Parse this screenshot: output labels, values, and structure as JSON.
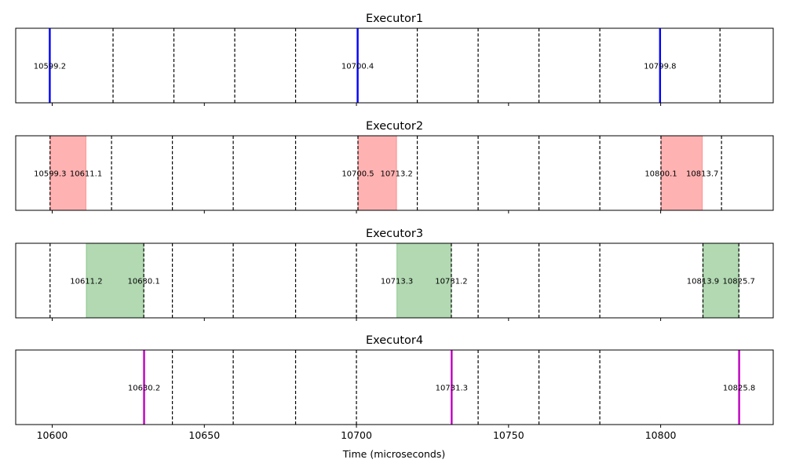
{
  "chart_data": {
    "type": "timeline",
    "xlabel": "Time (microseconds)",
    "xlim": [
      10588,
      10837
    ],
    "xticks": [
      10600,
      10650,
      10700,
      10750,
      10800
    ],
    "panels": [
      {
        "title": "Executor1",
        "dashed_lines": [
          10620,
          10640,
          10660,
          10680,
          10720,
          10740,
          10760,
          10780,
          10819.5
        ],
        "markers": [
          {
            "x": 10599.2,
            "label": "10599.2",
            "color": "#0000ff"
          },
          {
            "x": 10700.4,
            "label": "10700.4",
            "color": "#0000ff"
          },
          {
            "x": 10799.8,
            "label": "10799.8",
            "color": "#0000ff"
          }
        ],
        "spans": [],
        "labels": [
          {
            "x": 10599.2,
            "text": "10599.2"
          },
          {
            "x": 10700.4,
            "text": "10700.4"
          },
          {
            "x": 10799.8,
            "text": "10799.8"
          }
        ]
      },
      {
        "title": "Executor2",
        "dashed_lines": [
          10599.3,
          10619.5,
          10639.5,
          10659.5,
          10680,
          10700.5,
          10720,
          10740,
          10760,
          10780,
          10800.1,
          10820
        ],
        "markers": [],
        "spans": [
          {
            "start": 10599.3,
            "end": 10611.1,
            "color": "#ff0000"
          },
          {
            "start": 10700.5,
            "end": 10713.2,
            "color": "#ff0000"
          },
          {
            "start": 10800.1,
            "end": 10813.7,
            "color": "#ff0000"
          }
        ],
        "labels": [
          {
            "x": 10599.3,
            "text": "10599.3"
          },
          {
            "x": 10611.1,
            "text": "10611.1"
          },
          {
            "x": 10700.5,
            "text": "10700.5"
          },
          {
            "x": 10713.2,
            "text": "10713.2"
          },
          {
            "x": 10800.1,
            "text": "10800.1"
          },
          {
            "x": 10813.7,
            "text": "10813.7"
          }
        ]
      },
      {
        "title": "Executor3",
        "dashed_lines": [
          10599.3,
          10630.1,
          10639.5,
          10659.5,
          10680,
          10700,
          10731.2,
          10740,
          10760,
          10780,
          10813.9,
          10825.7
        ],
        "markers": [],
        "spans": [
          {
            "start": 10611.2,
            "end": 10630.1,
            "color": "#008000"
          },
          {
            "start": 10713.3,
            "end": 10731.2,
            "color": "#008000"
          },
          {
            "start": 10813.9,
            "end": 10825.7,
            "color": "#008000"
          }
        ],
        "labels": [
          {
            "x": 10611.2,
            "text": "10611.2"
          },
          {
            "x": 10630.1,
            "text": "10630.1"
          },
          {
            "x": 10713.3,
            "text": "10713.3"
          },
          {
            "x": 10731.2,
            "text": "10731.2"
          },
          {
            "x": 10813.9,
            "text": "10813.9"
          },
          {
            "x": 10825.7,
            "text": "10825.7"
          }
        ]
      },
      {
        "title": "Executor4",
        "dashed_lines": [
          10639.5,
          10659.5,
          10680,
          10700,
          10740,
          10760,
          10780
        ],
        "markers": [
          {
            "x": 10630.2,
            "label": "10630.2",
            "color": "#bf00bf"
          },
          {
            "x": 10731.3,
            "label": "10731.3",
            "color": "#bf00bf"
          },
          {
            "x": 10825.8,
            "label": "10825.8",
            "color": "#bf00bf"
          }
        ],
        "spans": [],
        "labels": [
          {
            "x": 10630.2,
            "text": "10630.2"
          },
          {
            "x": 10731.3,
            "text": "10731.3"
          },
          {
            "x": 10825.8,
            "text": "10825.8"
          }
        ]
      }
    ]
  }
}
